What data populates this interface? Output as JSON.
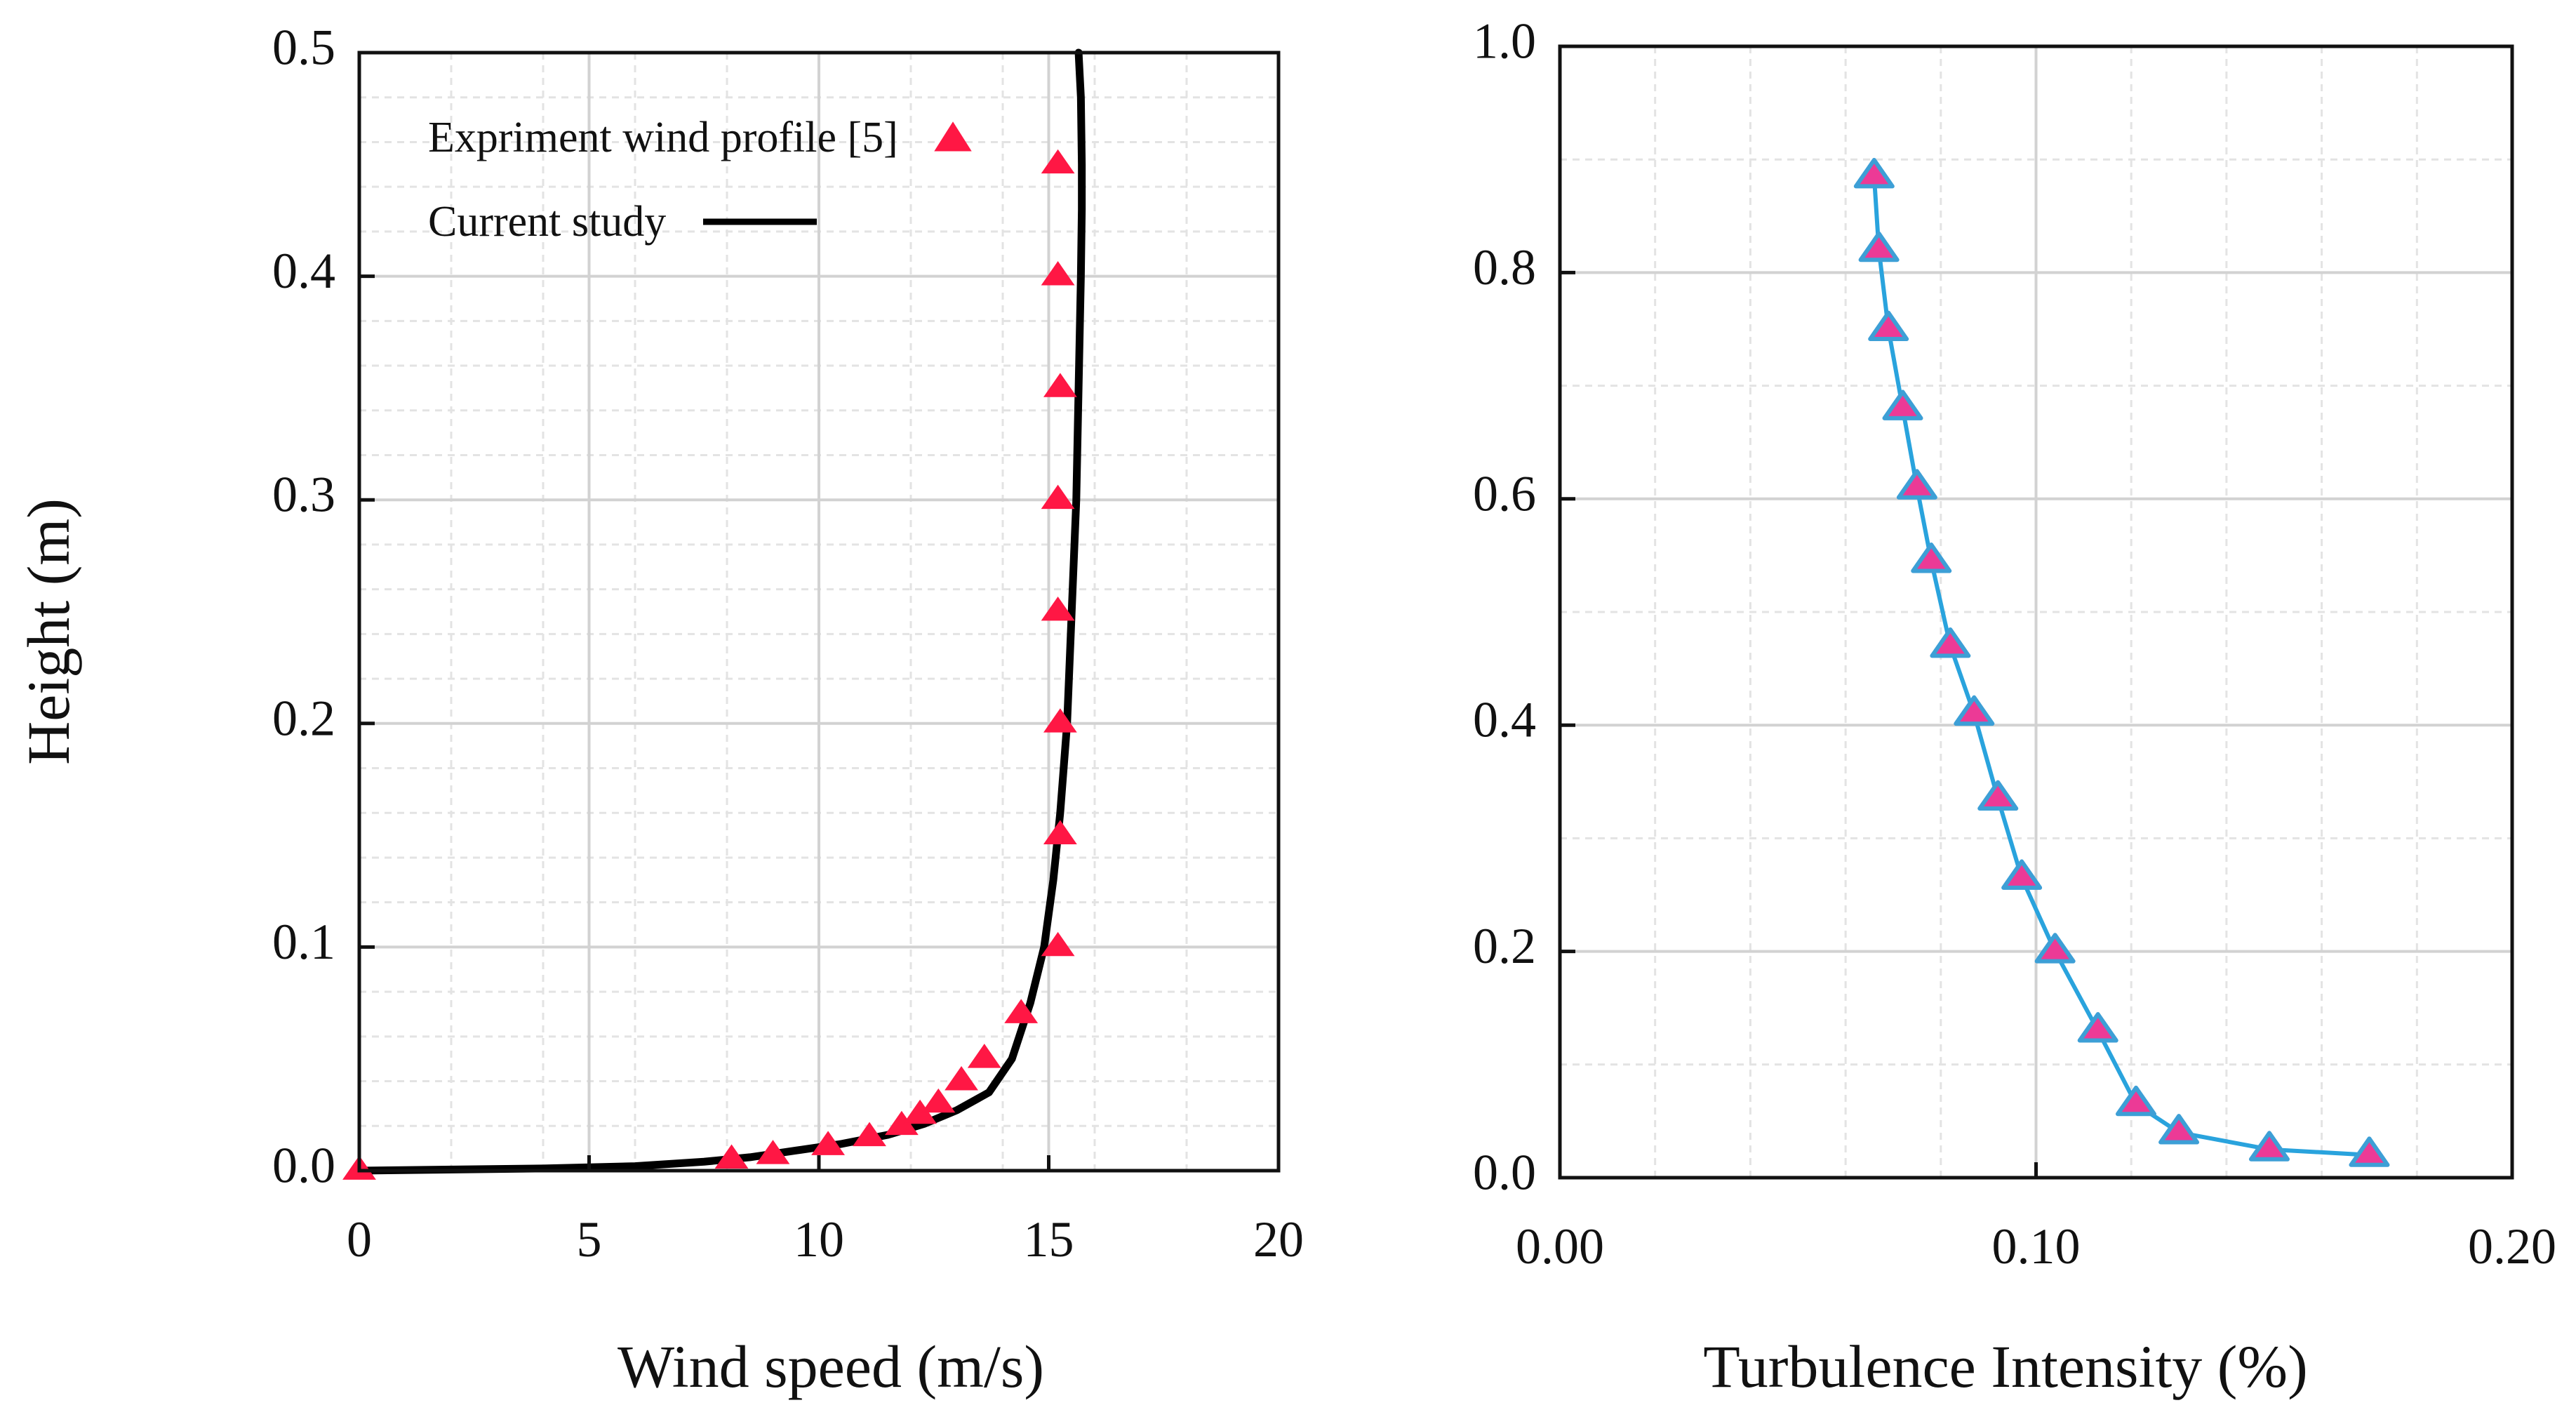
{
  "chart_data": [
    {
      "id": "wind",
      "type": "line+scatter",
      "xlabel": "Wind speed  (m/s)",
      "ylabel": "Height (m)",
      "xlim": [
        0,
        20
      ],
      "ylim": [
        0,
        0.5
      ],
      "xticks": [
        0,
        5,
        10,
        15,
        20
      ],
      "xtick_labels": [
        "0",
        "5",
        "10",
        "15",
        "20"
      ],
      "yticks": [
        0,
        0.1,
        0.2,
        0.3,
        0.4,
        0.5
      ],
      "ytick_labels": [
        "0.0",
        "0.1",
        "0.2",
        "0.3",
        "0.4",
        "0.5"
      ],
      "grid": true,
      "legend_position": "top-left",
      "colors": {
        "experiment": "#ff1744",
        "model": "#000000"
      },
      "series": [
        {
          "name": "Expriment wind profile [5]",
          "kind": "scatter",
          "marker": "triangle",
          "x": [
            0,
            8.1,
            9.0,
            10.2,
            11.1,
            11.8,
            12.2,
            12.6,
            13.1,
            13.6,
            14.4,
            15.2,
            15.25,
            15.25,
            15.2,
            15.2,
            15.25,
            15.2,
            15.2
          ],
          "y": [
            0.0,
            0.005,
            0.007,
            0.011,
            0.015,
            0.02,
            0.025,
            0.03,
            0.04,
            0.05,
            0.07,
            0.1,
            0.15,
            0.2,
            0.25,
            0.3,
            0.35,
            0.4,
            0.45
          ]
        },
        {
          "name": "Current study",
          "kind": "line",
          "x": [
            0,
            4,
            6,
            7.5,
            8.5,
            9.5,
            10.5,
            11.5,
            12.3,
            13.0,
            13.7,
            14.2,
            14.6,
            14.9,
            15.1,
            15.25,
            15.4,
            15.5,
            15.6,
            15.65,
            15.7,
            15.72,
            15.72,
            15.7,
            15.65
          ],
          "y": [
            0.0,
            0.001,
            0.002,
            0.004,
            0.006,
            0.009,
            0.012,
            0.016,
            0.021,
            0.027,
            0.035,
            0.05,
            0.075,
            0.1,
            0.13,
            0.16,
            0.2,
            0.25,
            0.3,
            0.35,
            0.4,
            0.43,
            0.45,
            0.48,
            0.5
          ]
        }
      ]
    },
    {
      "id": "turbulence",
      "type": "line+scatter",
      "xlabel": "Turbulence Intensity (%)",
      "ylabel": "",
      "xlim": [
        0,
        0.2
      ],
      "ylim": [
        0,
        1.0
      ],
      "xticks": [
        0,
        0.1,
        0.2
      ],
      "xtick_labels": [
        "0.00",
        "0.10",
        "0.20"
      ],
      "yticks": [
        0,
        0.2,
        0.4,
        0.6,
        0.8,
        1.0
      ],
      "ytick_labels": [
        "0.0",
        "0.2",
        "0.4",
        "0.6",
        "0.8",
        "1.0"
      ],
      "grid": true,
      "colors": {
        "line": "#29a3dd",
        "marker_fill": "#ec3a96",
        "marker_edge": "#3d9fd6"
      },
      "series": [
        {
          "name": "Turbulence intensity",
          "kind": "line+scatter",
          "marker": "triangle",
          "x": [
            0.066,
            0.067,
            0.069,
            0.072,
            0.075,
            0.078,
            0.082,
            0.087,
            0.092,
            0.097,
            0.104,
            0.113,
            0.121,
            0.13,
            0.149,
            0.17
          ],
          "y": [
            0.885,
            0.82,
            0.75,
            0.68,
            0.61,
            0.545,
            0.47,
            0.41,
            0.335,
            0.265,
            0.2,
            0.13,
            0.065,
            0.04,
            0.025,
            0.02
          ]
        }
      ]
    }
  ]
}
